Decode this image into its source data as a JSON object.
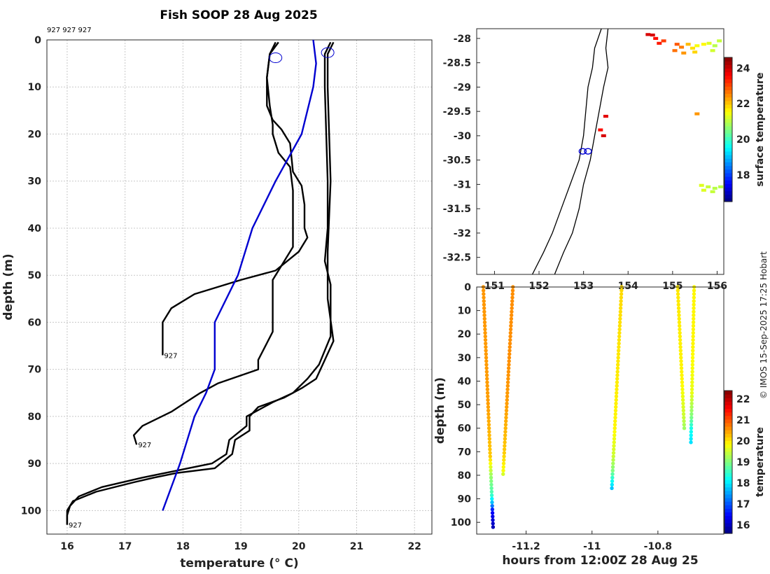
{
  "figure_title": "Fish SOOP 28 Aug 2025",
  "credit": "© IMOS 15-Sep-2025 17:25 Hobart",
  "chart_data": [
    {
      "type": "line",
      "title": "Fish SOOP 28 Aug 2025",
      "header_ids": "927 927 927",
      "xlabel": "temperature (° C)",
      "ylabel": "depth (m)",
      "xlim": [
        15.65,
        22.3
      ],
      "ylim": [
        105,
        0
      ],
      "xticks": [
        16,
        17,
        18,
        19,
        20,
        21,
        22
      ],
      "yticks": [
        0,
        10,
        20,
        30,
        40,
        50,
        60,
        70,
        80,
        90,
        100
      ],
      "grid": true,
      "series": [
        {
          "color": "#000000",
          "end_label": "927",
          "points": [
            [
              19.6,
              0.5
            ],
            [
              19.5,
              3
            ],
            [
              19.45,
              8
            ],
            [
              19.45,
              14
            ],
            [
              19.55,
              17
            ],
            [
              19.7,
              19
            ],
            [
              19.85,
              22
            ],
            [
              19.9,
              28
            ],
            [
              20.05,
              31
            ],
            [
              20.1,
              35
            ],
            [
              20.1,
              40
            ],
            [
              20.15,
              42
            ],
            [
              20.0,
              45
            ],
            [
              19.6,
              49
            ],
            [
              19.0,
              51
            ],
            [
              18.2,
              54
            ],
            [
              17.8,
              57
            ],
            [
              17.65,
              60
            ],
            [
              17.65,
              64
            ],
            [
              17.65,
              67
            ]
          ]
        },
        {
          "color": "#000000",
          "end_label": "927",
          "points": [
            [
              19.65,
              0.5
            ],
            [
              19.5,
              3
            ],
            [
              19.45,
              8
            ],
            [
              19.5,
              14
            ],
            [
              19.55,
              18
            ],
            [
              19.55,
              20
            ],
            [
              19.65,
              24
            ],
            [
              19.85,
              27
            ],
            [
              19.9,
              32
            ],
            [
              19.9,
              40
            ],
            [
              19.9,
              44
            ],
            [
              19.75,
              47
            ],
            [
              19.55,
              51
            ],
            [
              19.55,
              62
            ],
            [
              19.3,
              68
            ],
            [
              19.3,
              70
            ],
            [
              18.6,
              73
            ],
            [
              18.3,
              75
            ],
            [
              17.8,
              79
            ],
            [
              17.3,
              82
            ],
            [
              17.15,
              84
            ],
            [
              17.2,
              86
            ]
          ]
        },
        {
          "color": "#000000",
          "end_label": "927",
          "points": [
            [
              20.55,
              0.5
            ],
            [
              20.45,
              3
            ],
            [
              20.45,
              10
            ],
            [
              20.5,
              30
            ],
            [
              20.5,
              40
            ],
            [
              20.45,
              47
            ],
            [
              20.55,
              52
            ],
            [
              20.55,
              63
            ],
            [
              20.35,
              69
            ],
            [
              20.15,
              72
            ],
            [
              19.9,
              75
            ],
            [
              19.55,
              77
            ],
            [
              19.1,
              80
            ],
            [
              19.1,
              82
            ],
            [
              18.8,
              85
            ],
            [
              18.75,
              88
            ],
            [
              18.5,
              90
            ],
            [
              17.7,
              92
            ],
            [
              17.3,
              93
            ],
            [
              16.6,
              95
            ],
            [
              16.2,
              97
            ],
            [
              16.05,
              99
            ],
            [
              16.0,
              101
            ],
            [
              16.0,
              103
            ]
          ]
        },
        {
          "color": "#000000",
          "end_label": "",
          "points": [
            [
              20.6,
              0.5
            ],
            [
              20.5,
              3
            ],
            [
              20.5,
              10
            ],
            [
              20.55,
              30
            ],
            [
              20.5,
              45
            ],
            [
              20.5,
              55
            ],
            [
              20.6,
              64
            ],
            [
              20.45,
              68
            ],
            [
              20.3,
              72
            ],
            [
              20.05,
              74
            ],
            [
              19.75,
              76
            ],
            [
              19.3,
              78
            ],
            [
              19.15,
              80
            ],
            [
              19.15,
              83
            ],
            [
              18.9,
              85
            ],
            [
              18.85,
              88
            ],
            [
              18.55,
              91
            ],
            [
              17.9,
              92
            ],
            [
              17.5,
              93
            ],
            [
              17.15,
              94
            ],
            [
              16.5,
              96
            ],
            [
              16.1,
              98
            ],
            [
              16.0,
              100
            ],
            [
              16.0,
              103
            ]
          ]
        },
        {
          "color": "#0000d0",
          "end_label": "",
          "points": [
            [
              20.25,
              0
            ],
            [
              20.3,
              5
            ],
            [
              20.25,
              10
            ],
            [
              20.05,
              20
            ],
            [
              19.6,
              30
            ],
            [
              19.2,
              40
            ],
            [
              18.95,
              50
            ],
            [
              18.55,
              60
            ],
            [
              18.55,
              70
            ],
            [
              18.4,
              75
            ],
            [
              18.2,
              80
            ],
            [
              17.95,
              90
            ],
            [
              17.65,
              100
            ]
          ]
        }
      ],
      "markers": [
        {
          "x": 19.6,
          "y": 3.8
        },
        {
          "x": 20.5,
          "y": 2.7
        }
      ]
    },
    {
      "type": "scatter",
      "subtype": "map",
      "colorbar_label": "surface temperature",
      "colorbar_ticks": [
        18,
        20,
        22,
        24
      ],
      "colorbar_range": [
        16.5,
        24.6
      ],
      "xlim": [
        150.6,
        156.15
      ],
      "ylim": [
        -32.85,
        -27.8
      ],
      "xticks": [
        151,
        152,
        153,
        154,
        155,
        156
      ],
      "yticks": [
        -28,
        -28.5,
        -29,
        -29.5,
        -30,
        -30.5,
        -31,
        -31.5,
        -32,
        -32.5
      ],
      "coastline": [
        [
          153.55,
          -27.8
        ],
        [
          153.5,
          -28.2
        ],
        [
          153.55,
          -28.6
        ],
        [
          153.45,
          -29.0
        ],
        [
          153.35,
          -29.5
        ],
        [
          153.25,
          -30.0
        ],
        [
          153.15,
          -30.5
        ],
        [
          153.0,
          -31.0
        ],
        [
          152.9,
          -31.5
        ],
        [
          152.75,
          -32.0
        ],
        [
          152.55,
          -32.4
        ],
        [
          152.35,
          -32.85
        ]
      ],
      "shelf_edge": [
        [
          153.4,
          -27.8
        ],
        [
          153.25,
          -28.2
        ],
        [
          153.2,
          -28.6
        ],
        [
          153.1,
          -29.0
        ],
        [
          153.05,
          -29.5
        ],
        [
          153.0,
          -30.0
        ],
        [
          152.9,
          -30.5
        ],
        [
          152.7,
          -31.0
        ],
        [
          152.5,
          -31.5
        ],
        [
          152.3,
          -32.0
        ],
        [
          152.1,
          -32.4
        ],
        [
          151.85,
          -32.85
        ]
      ],
      "sst_points": [
        [
          154.45,
          -27.92,
          23.9
        ],
        [
          154.55,
          -27.93,
          23.9
        ],
        [
          154.62,
          -28.0,
          23.5
        ],
        [
          154.8,
          -28.05,
          23.1
        ],
        [
          154.7,
          -28.1,
          23.4
        ],
        [
          155.1,
          -28.12,
          22.9
        ],
        [
          155.2,
          -28.18,
          22.6
        ],
        [
          155.35,
          -28.12,
          22.1
        ],
        [
          155.45,
          -28.2,
          21.8
        ],
        [
          155.55,
          -28.15,
          21.5
        ],
        [
          155.7,
          -28.12,
          21.6
        ],
        [
          155.82,
          -28.1,
          21.3
        ],
        [
          155.95,
          -28.15,
          21.0
        ],
        [
          156.05,
          -28.05,
          21.1
        ],
        [
          155.05,
          -28.25,
          22.7
        ],
        [
          155.25,
          -28.3,
          22.4
        ],
        [
          155.5,
          -28.28,
          21.9
        ],
        [
          155.9,
          -28.25,
          21.2
        ],
        [
          153.38,
          -29.88,
          23.5
        ],
        [
          153.45,
          -30.0,
          23.9
        ],
        [
          153.5,
          -29.6,
          23.8
        ],
        [
          155.55,
          -29.55,
          22.4
        ],
        [
          155.65,
          -31.02,
          21.3
        ],
        [
          155.8,
          -31.05,
          21.1
        ],
        [
          155.95,
          -31.08,
          21.0
        ],
        [
          156.08,
          -31.05,
          21.0
        ],
        [
          155.7,
          -31.12,
          21.3
        ],
        [
          155.9,
          -31.15,
          21.1
        ]
      ],
      "track_markers": [
        {
          "x": 152.98,
          "y": -30.32
        },
        {
          "x": 153.1,
          "y": -30.32
        }
      ]
    },
    {
      "type": "scatter",
      "subtype": "section",
      "xlabel": "hours from 12:00Z 28 Aug 25",
      "ylabel": "depth (m)",
      "colorbar_label": "temperature",
      "colorbar_ticks": [
        16,
        17,
        18,
        19,
        20,
        21,
        22
      ],
      "colorbar_range": [
        15.6,
        22.4
      ],
      "xlim": [
        -11.35,
        -10.6
      ],
      "ylim": [
        105,
        0
      ],
      "xticks": [
        -11.2,
        -11.0,
        -10.8
      ],
      "yticks": [
        0,
        10,
        20,
        30,
        40,
        50,
        60,
        70,
        80,
        90,
        100
      ],
      "casts": [
        {
          "x_top": -11.24,
          "x_bottom": -11.27,
          "depth": 80,
          "profile": [
            [
              0,
              20.6
            ],
            [
              30,
              20.6
            ],
            [
              50,
              20.5
            ],
            [
              70,
              20.2
            ],
            [
              78,
              19.8
            ],
            [
              80,
              19.5
            ]
          ]
        },
        {
          "x_top": -11.33,
          "x_bottom": -11.3,
          "depth": 103,
          "profile": [
            [
              0,
              20.55
            ],
            [
              50,
              20.5
            ],
            [
              72,
              20.2
            ],
            [
              80,
              19.2
            ],
            [
              88,
              18.6
            ],
            [
              92,
              17.6
            ],
            [
              95,
              16.5
            ],
            [
              103,
              15.9
            ]
          ]
        },
        {
          "x_top": -10.91,
          "x_bottom": -10.94,
          "depth": 86,
          "profile": [
            [
              0,
              20.1
            ],
            [
              30,
              20.0
            ],
            [
              60,
              19.9
            ],
            [
              72,
              19.5
            ],
            [
              78,
              19.0
            ],
            [
              82,
              18.3
            ],
            [
              86,
              17.7
            ]
          ]
        },
        {
          "x_top": -10.69,
          "x_bottom": -10.7,
          "depth": 67,
          "profile": [
            [
              0,
              19.9
            ],
            [
              25,
              19.9
            ],
            [
              45,
              19.7
            ],
            [
              55,
              19.0
            ],
            [
              60,
              18.3
            ],
            [
              67,
              17.9
            ]
          ]
        },
        {
          "x_top": -10.74,
          "x_bottom": -10.72,
          "depth": 60,
          "profile": [
            [
              0,
              20.0
            ],
            [
              40,
              19.9
            ],
            [
              55,
              19.5
            ],
            [
              60,
              19.2
            ]
          ]
        }
      ]
    }
  ]
}
